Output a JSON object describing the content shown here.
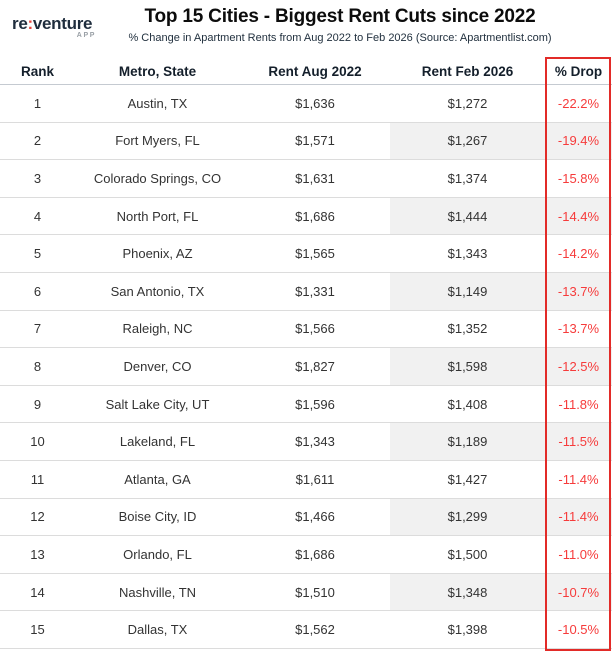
{
  "brand": {
    "logo_re": "re",
    "logo_colon": ":",
    "logo_venture": "venture",
    "logo_sub": "APP"
  },
  "header": {
    "title": "Top 15 Cities - Biggest Rent Cuts since 2022",
    "subtitle": "% Change in Apartment Rents from Aug 2022 to Feb 2026 (Source: Apartmentlist.com)"
  },
  "colors": {
    "brand_navy": "#1f2d3d",
    "brand_red": "#e8473f",
    "drop_text_red": "#f63b3b",
    "drop_box_red": "#e22b28",
    "alt_cell_gray": "#f1f1f1",
    "row_divider": "#dcdcdc"
  },
  "table": {
    "columns": [
      "Rank",
      "Metro, State",
      "Rent Aug 2022",
      "Rent Feb 2026",
      "% Drop"
    ],
    "rows": [
      {
        "rank": "1",
        "metro": "Austin, TX",
        "rent_aug": "$1,636",
        "rent_feb": "$1,272",
        "drop": "-22.2%"
      },
      {
        "rank": "2",
        "metro": "Fort Myers, FL",
        "rent_aug": "$1,571",
        "rent_feb": "$1,267",
        "drop": "-19.4%"
      },
      {
        "rank": "3",
        "metro": "Colorado Springs, CO",
        "rent_aug": "$1,631",
        "rent_feb": "$1,374",
        "drop": "-15.8%"
      },
      {
        "rank": "4",
        "metro": "North Port, FL",
        "rent_aug": "$1,686",
        "rent_feb": "$1,444",
        "drop": "-14.4%"
      },
      {
        "rank": "5",
        "metro": "Phoenix, AZ",
        "rent_aug": "$1,565",
        "rent_feb": "$1,343",
        "drop": "-14.2%"
      },
      {
        "rank": "6",
        "metro": "San Antonio, TX",
        "rent_aug": "$1,331",
        "rent_feb": "$1,149",
        "drop": "-13.7%"
      },
      {
        "rank": "7",
        "metro": "Raleigh, NC",
        "rent_aug": "$1,566",
        "rent_feb": "$1,352",
        "drop": "-13.7%"
      },
      {
        "rank": "8",
        "metro": "Denver, CO",
        "rent_aug": "$1,827",
        "rent_feb": "$1,598",
        "drop": "-12.5%"
      },
      {
        "rank": "9",
        "metro": "Salt Lake City, UT",
        "rent_aug": "$1,596",
        "rent_feb": "$1,408",
        "drop": "-11.8%"
      },
      {
        "rank": "10",
        "metro": "Lakeland, FL",
        "rent_aug": "$1,343",
        "rent_feb": "$1,189",
        "drop": "-11.5%"
      },
      {
        "rank": "11",
        "metro": "Atlanta, GA",
        "rent_aug": "$1,611",
        "rent_feb": "$1,427",
        "drop": "-11.4%"
      },
      {
        "rank": "12",
        "metro": "Boise City, ID",
        "rent_aug": "$1,466",
        "rent_feb": "$1,299",
        "drop": "-11.4%"
      },
      {
        "rank": "13",
        "metro": "Orlando, FL",
        "rent_aug": "$1,686",
        "rent_feb": "$1,500",
        "drop": "-11.0%"
      },
      {
        "rank": "14",
        "metro": "Nashville, TN",
        "rent_aug": "$1,510",
        "rent_feb": "$1,348",
        "drop": "-10.7%"
      },
      {
        "rank": "15",
        "metro": "Dallas, TX",
        "rent_aug": "$1,562",
        "rent_feb": "$1,398",
        "drop": "-10.5%"
      }
    ]
  },
  "chart_data": {
    "type": "table",
    "title": "Top 15 Cities - Biggest Rent Cuts since 2022",
    "subtitle": "% Change in Apartment Rents from Aug 2022 to Feb 2026 (Source: Apartmentlist.com)",
    "columns": [
      "Rank",
      "Metro, State",
      "Rent Aug 2022",
      "Rent Feb 2026",
      "% Drop"
    ],
    "rows": [
      [
        1,
        "Austin, TX",
        1636,
        1272,
        -22.2
      ],
      [
        2,
        "Fort Myers, FL",
        1571,
        1267,
        -19.4
      ],
      [
        3,
        "Colorado Springs, CO",
        1631,
        1374,
        -15.8
      ],
      [
        4,
        "North Port, FL",
        1686,
        1444,
        -14.4
      ],
      [
        5,
        "Phoenix, AZ",
        1565,
        1343,
        -14.2
      ],
      [
        6,
        "San Antonio, TX",
        1331,
        1149,
        -13.7
      ],
      [
        7,
        "Raleigh, NC",
        1566,
        1352,
        -13.7
      ],
      [
        8,
        "Denver, CO",
        1827,
        1598,
        -12.5
      ],
      [
        9,
        "Salt Lake City, UT",
        1596,
        1408,
        -11.8
      ],
      [
        10,
        "Lakeland, FL",
        1343,
        1189,
        -11.5
      ],
      [
        11,
        "Atlanta, GA",
        1611,
        1427,
        -11.4
      ],
      [
        12,
        "Boise City, ID",
        1466,
        1299,
        -11.4
      ],
      [
        13,
        "Orlando, FL",
        1686,
        1500,
        -11.0
      ],
      [
        14,
        "Nashville, TN",
        1510,
        1348,
        -10.7
      ],
      [
        15,
        "Dallas, TX",
        1562,
        1398,
        -10.5
      ]
    ]
  }
}
